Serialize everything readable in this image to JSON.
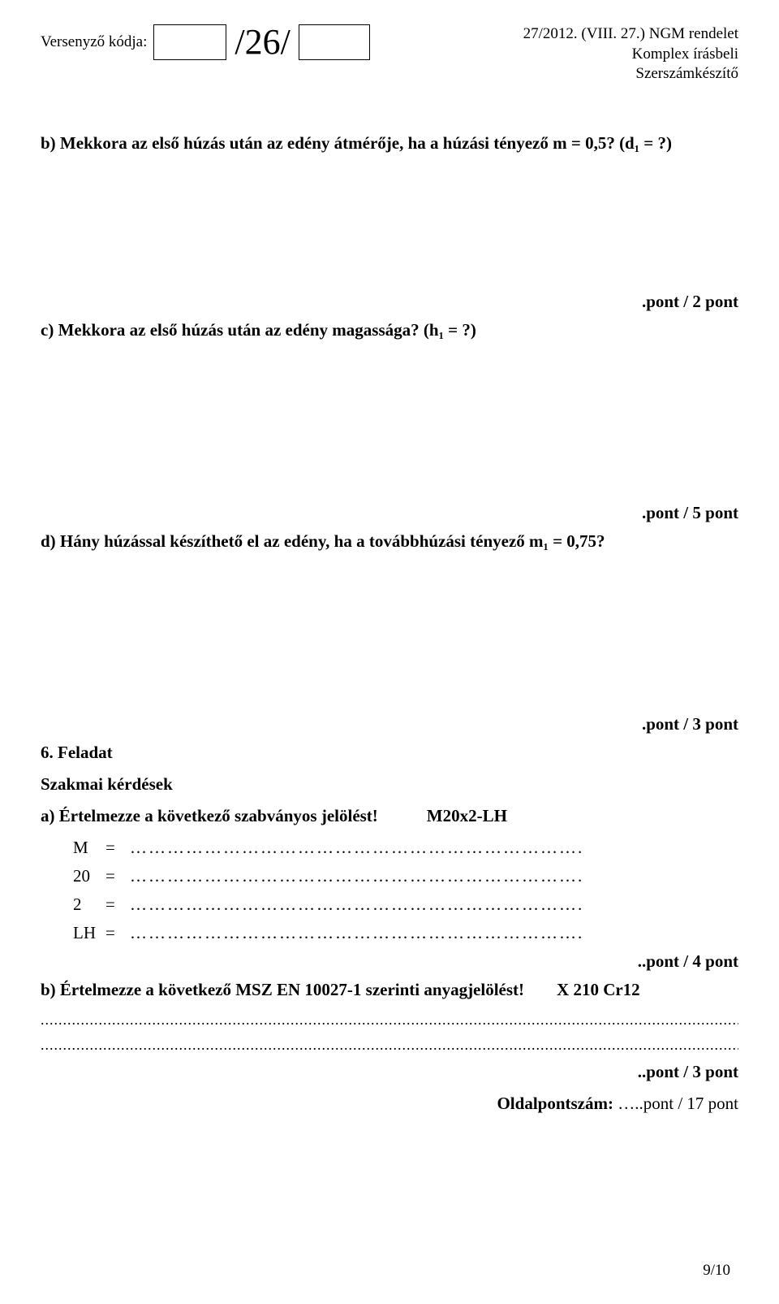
{
  "header": {
    "versenyzo_label": "Versenyző kódja:",
    "slash_text": "/26/",
    "right_line1": "27/2012. (VIII. 27.) NGM rendelet",
    "right_line2": "Komplex írásbeli",
    "right_line3": "Szerszámkészítő"
  },
  "q_b": "b) Mekkora az első húzás után az edény átmérője, ha a húzási tényező m = 0,5? (d₁ = ?)",
  "points_2": ".pont / 2 pont",
  "q_c": "c) Mekkora az első húzás után az edény magassága? (h₁ = ?)",
  "points_5": ".pont / 5 pont",
  "q_d": "d) Hány húzással készíthető el az edény, ha a továbbhúzási tényező m₁ = 0,75?",
  "points_3": ".pont / 3 pont",
  "feladat_title": "6. Feladat",
  "szakmai": "Szakmai kérdések",
  "q_a_text": "a) Értelmezze a következő szabványos jelölést!",
  "q_a_code": "M20x2-LH",
  "defs": {
    "m": "M",
    "twenty": "20",
    "two": "2",
    "lh": "LH",
    "eq": "=",
    "dots": "………………………………………………………………."
  },
  "points_4": "..pont / 4 pont",
  "q_b2_text": "b) Értelmezze a következő MSZ EN 10027-1 szerinti anyagjelölést!",
  "q_b2_code": "X 210 Cr12",
  "long_dots": "...................................................................................................................................................................",
  "points_3b": "..pont / 3 pont",
  "oldal_label": "Oldalpontszám:",
  "oldal_value": " …..pont / 17 pont",
  "page_num": "9/10"
}
